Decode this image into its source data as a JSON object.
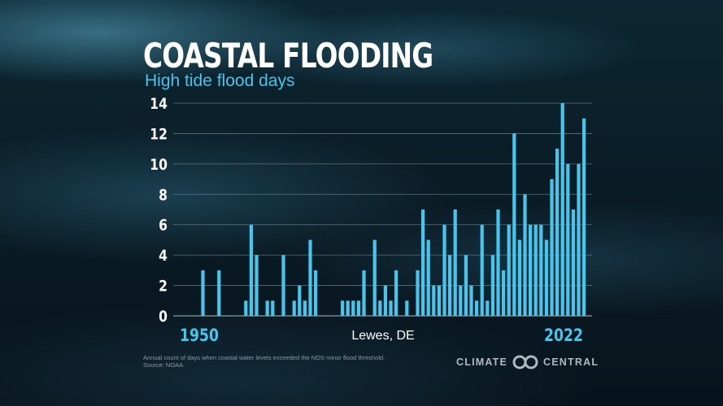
{
  "title": "COASTAL FLOODING",
  "subtitle": "High tide flood days",
  "footnote": {
    "line1": "Annual count of days when coastal water levels exceeded the NOS minor flood threshold.",
    "line2": "Source: NOAA"
  },
  "brand": {
    "word1": "CLIMATE",
    "word2": "CENTRAL"
  },
  "colors": {
    "bar": "#45c6ec",
    "accent": "#45c6ec",
    "grid": "#7f8f98",
    "text": "#ffffff"
  },
  "chart_data": {
    "type": "bar",
    "title": "COASTAL FLOODING",
    "subtitle": "High tide flood days",
    "location_label": "Lewes, DE",
    "x_start_label": "1950",
    "x_end_label": "2022",
    "xlabel": "",
    "ylabel": "High tide flood days",
    "ylim": [
      0,
      14
    ],
    "yticks": [
      0,
      2,
      4,
      6,
      8,
      10,
      12,
      14
    ],
    "grid": true,
    "categories": [
      1950,
      1951,
      1952,
      1953,
      1954,
      1955,
      1956,
      1957,
      1958,
      1959,
      1960,
      1961,
      1962,
      1963,
      1964,
      1965,
      1966,
      1967,
      1968,
      1969,
      1970,
      1971,
      1972,
      1973,
      1974,
      1975,
      1976,
      1977,
      1978,
      1979,
      1980,
      1981,
      1982,
      1983,
      1984,
      1985,
      1986,
      1987,
      1988,
      1989,
      1990,
      1991,
      1992,
      1993,
      1994,
      1995,
      1996,
      1997,
      1998,
      1999,
      2000,
      2001,
      2002,
      2003,
      2004,
      2005,
      2006,
      2007,
      2008,
      2009,
      2010,
      2011,
      2012,
      2013,
      2014,
      2015,
      2016,
      2017,
      2018,
      2019,
      2020,
      2021,
      2022
    ],
    "values": [
      3,
      0,
      0,
      3,
      0,
      0,
      0,
      0,
      1,
      6,
      4,
      0,
      1,
      1,
      0,
      4,
      0,
      1,
      2,
      1,
      5,
      3,
      0,
      0,
      0,
      0,
      1,
      1,
      1,
      1,
      3,
      0,
      5,
      1,
      2,
      1,
      3,
      0,
      1,
      0,
      3,
      7,
      5,
      2,
      2,
      6,
      4,
      7,
      2,
      4,
      2,
      1,
      6,
      1,
      4,
      7,
      3,
      6,
      12,
      5,
      8,
      6,
      6,
      6,
      5,
      9,
      11,
      14,
      10,
      7,
      10,
      13,
      0
    ]
  }
}
